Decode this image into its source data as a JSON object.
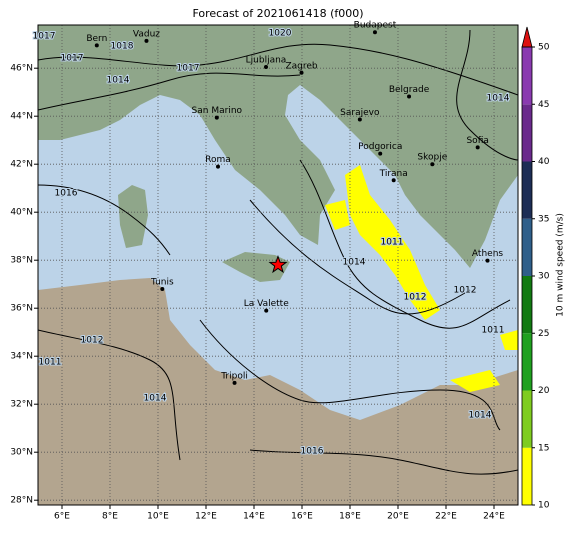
{
  "chart_data": {
    "type": "map",
    "title": "Forecast of 2021061418 (f000)",
    "xlim": [
      5,
      25
    ],
    "ylim": [
      27.8,
      47.8
    ],
    "xticks": [
      {
        "value": 6,
        "label": "6°E"
      },
      {
        "value": 8,
        "label": "8°E"
      },
      {
        "value": 10,
        "label": "10°E"
      },
      {
        "value": 12,
        "label": "12°E"
      },
      {
        "value": 14,
        "label": "14°E"
      },
      {
        "value": 16,
        "label": "16°E"
      },
      {
        "value": 18,
        "label": "18°E"
      },
      {
        "value": 20,
        "label": "20°E"
      },
      {
        "value": 22,
        "label": "22°E"
      },
      {
        "value": 24,
        "label": "24°E"
      }
    ],
    "yticks": [
      {
        "value": 28,
        "label": "28°N"
      },
      {
        "value": 30,
        "label": "30°N"
      },
      {
        "value": 32,
        "label": "32°N"
      },
      {
        "value": 34,
        "label": "34°N"
      },
      {
        "value": 36,
        "label": "36°N"
      },
      {
        "value": 38,
        "label": "38°N"
      },
      {
        "value": 40,
        "label": "40°N"
      },
      {
        "value": 42,
        "label": "42°N"
      },
      {
        "value": 44,
        "label": "44°N"
      },
      {
        "value": 46,
        "label": "46°N"
      }
    ],
    "grid": true,
    "cities": [
      {
        "name": "Bern",
        "lon": 7.45,
        "lat": 46.95
      },
      {
        "name": "Vaduz",
        "lon": 9.52,
        "lat": 47.14
      },
      {
        "name": "Budapest",
        "lon": 19.04,
        "lat": 47.5
      },
      {
        "name": "Ljubljana",
        "lon": 14.5,
        "lat": 46.05
      },
      {
        "name": "Zagreb",
        "lon": 15.98,
        "lat": 45.81
      },
      {
        "name": "Belgrade",
        "lon": 20.46,
        "lat": 44.82
      },
      {
        "name": "San Marino",
        "lon": 12.45,
        "lat": 43.94
      },
      {
        "name": "Sarajevo",
        "lon": 18.41,
        "lat": 43.86
      },
      {
        "name": "Roma",
        "lon": 12.5,
        "lat": 41.9
      },
      {
        "name": "Podgorica",
        "lon": 19.26,
        "lat": 42.44
      },
      {
        "name": "Tirana",
        "lon": 19.82,
        "lat": 41.33
      },
      {
        "name": "Skopje",
        "lon": 21.43,
        "lat": 42.0
      },
      {
        "name": "Sofia",
        "lon": 23.32,
        "lat": 42.7
      },
      {
        "name": "Athens",
        "lon": 23.73,
        "lat": 37.98
      },
      {
        "name": "Tunis",
        "lon": 10.18,
        "lat": 36.8
      },
      {
        "name": "La Valette",
        "lon": 14.51,
        "lat": 35.9
      },
      {
        "name": "Tripoli",
        "lon": 13.19,
        "lat": 32.89
      }
    ],
    "star": {
      "lon": 15.0,
      "lat": 37.8,
      "color": "#ff0000"
    },
    "isobar_labels": [
      "1017",
      "1018",
      "1020",
      "1017",
      "1014",
      "1017",
      "1014",
      "1016",
      "1011",
      "1014",
      "1012",
      "1012",
      "1011",
      "1012",
      "1011",
      "1014",
      "1014",
      "1016"
    ],
    "colorbar": {
      "label": "10 m wind speed (m/s)",
      "lim": [
        10,
        50
      ],
      "ticks": [
        10,
        15,
        20,
        25,
        30,
        35,
        40,
        45,
        50
      ],
      "colors": [
        "#ffff00",
        "#7fcc1f",
        "#1fa01f",
        "#127a12",
        "#2f5f8a",
        "#1d2d55",
        "#6a2a8c",
        "#8a3ab0"
      ],
      "extend_color": "#dd1111"
    }
  }
}
